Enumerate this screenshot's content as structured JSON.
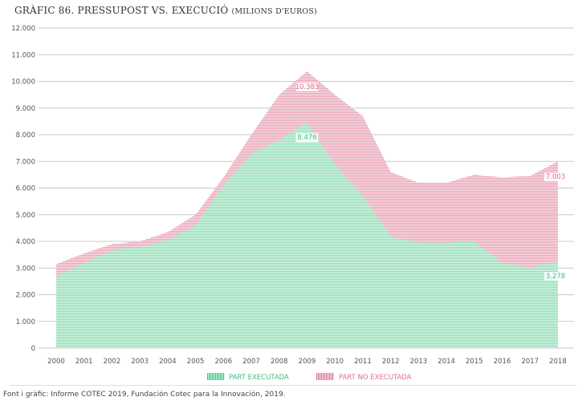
{
  "title": {
    "main": "GRÀFIC 86. PRESSUPOST VS. EXECUCIÓ",
    "sub": "(MILIONS D'EUROS)"
  },
  "footer": "Font i gràfic: Informe COTEC 2019, Fundación Cotec para la Innovación, 2019.",
  "colors": {
    "executed": "#8fdcb3",
    "not_executed": "#e8a0b4",
    "executed_text": "#3fbf7f",
    "not_executed_text": "#d9738f"
  },
  "chart_data": {
    "type": "area",
    "title": "GRÀFIC 86. PRESSUPOST VS. EXECUCIÓ (MILIONS D'EUROS)",
    "xlabel": "",
    "ylabel": "",
    "ylim": [
      0,
      12000
    ],
    "yticks": [
      0,
      1000,
      2000,
      3000,
      4000,
      5000,
      6000,
      7000,
      8000,
      9000,
      10000,
      11000,
      12000
    ],
    "ytick_labels": [
      "0",
      "1.000",
      "2.000",
      "3.000",
      "4.000",
      "5.000",
      "6.000",
      "7.000",
      "8.000",
      "9.000",
      "10.000",
      "11.000",
      "12.000"
    ],
    "grid": true,
    "legend_position": "bottom",
    "categories": [
      "2000",
      "2001",
      "2002",
      "2003",
      "2004",
      "2005",
      "2006",
      "2007",
      "2008",
      "2009",
      "2010",
      "2011",
      "2012",
      "2013",
      "2014",
      "2015",
      "2016",
      "2017",
      "2018"
    ],
    "series": [
      {
        "name": "PART EXECUTADA",
        "values": [
          2700,
          3200,
          3650,
          3800,
          4050,
          4600,
          6100,
          7300,
          7800,
          8476,
          6900,
          5700,
          4200,
          3950,
          3950,
          4000,
          3200,
          3000,
          3278
        ]
      },
      {
        "name": "PART NO EXECUTADA",
        "total_budget": [
          3150,
          3550,
          3900,
          4000,
          4350,
          5000,
          6400,
          8000,
          9500,
          10383,
          9500,
          8700,
          6600,
          6200,
          6200,
          6500,
          6400,
          6450,
          7003
        ]
      }
    ],
    "data_labels": [
      {
        "year": "2009",
        "series": "total",
        "text": "10.383"
      },
      {
        "year": "2009",
        "series": "executed",
        "text": "8.476"
      },
      {
        "year": "2018",
        "series": "total",
        "text": "7.003"
      },
      {
        "year": "2018",
        "series": "executed",
        "text": "3.278"
      }
    ]
  }
}
